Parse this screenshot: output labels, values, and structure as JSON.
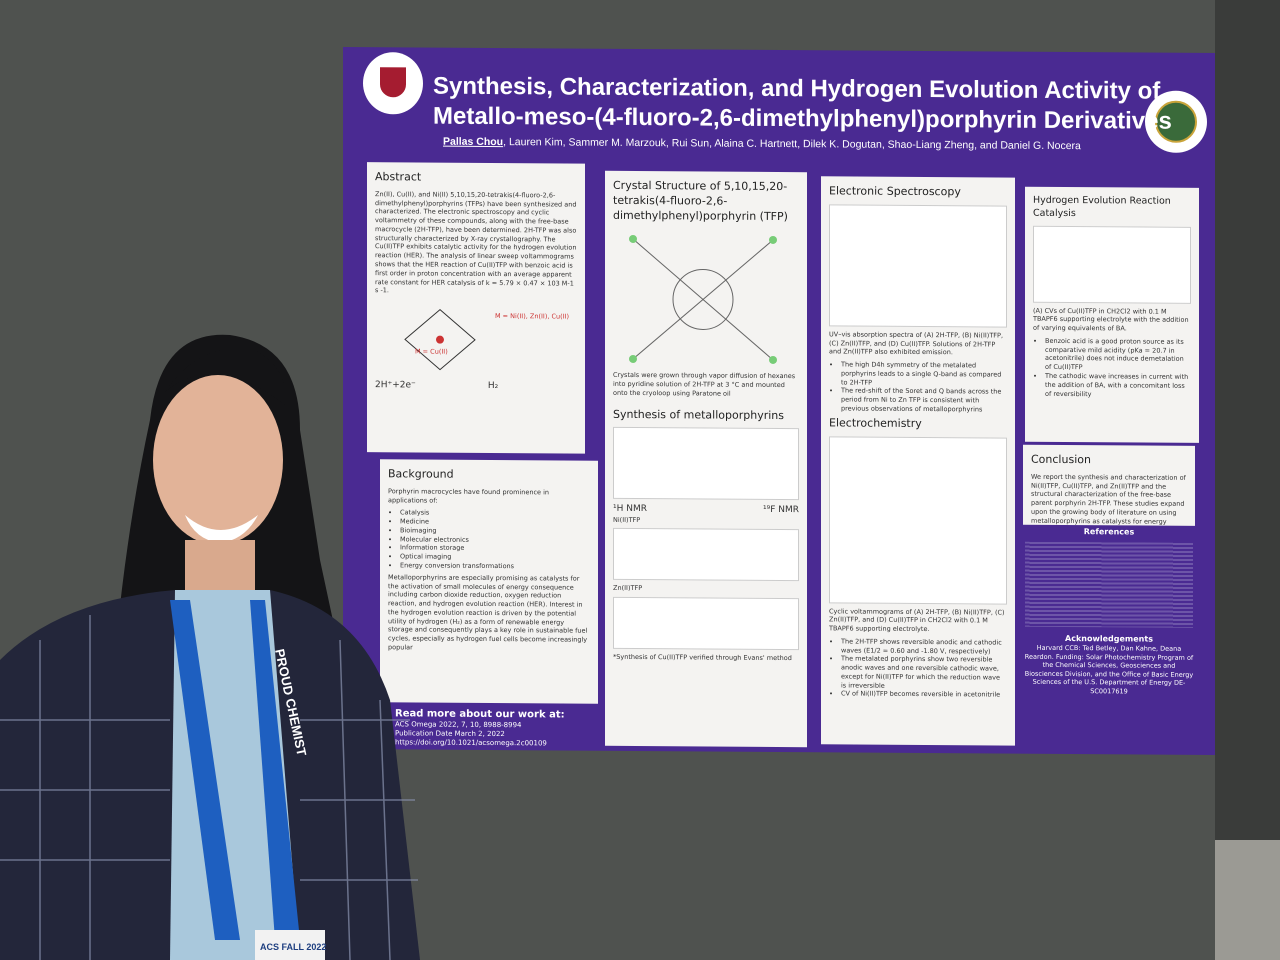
{
  "poster": {
    "title_line1": "Synthesis, Characterization, and Hydrogen Evolution Activity of",
    "title_line2": "Metallo-meso-(4-fluoro-2,6-dimethylphenyl)porphyrin Derivatives",
    "presenter": "Pallas Chou",
    "authors": ", Lauren Kim, Sammer M. Marzouk, Rui Sun, Alaina C. Hartnett, Dilek K. Dogutan, Shao-Liang Zheng, and Daniel G. Nocera",
    "abstract": {
      "heading": "Abstract",
      "text": "Zn(II), Cu(II), and Ni(II) 5,10,15,20-tetrakis(4-fluoro-2,6-dimethylphenyl)porphyrins (TFPs) have been synthesized and characterized. The electronic spectroscopy and cyclic voltammetry of these compounds, along with the free-base macrocycle (2H-TFP), have been determined. 2H-TFP was also structurally characterized by X-ray crystallography. The Cu(II)TFP exhibits catalytic activity for the hydrogen evolution reaction (HER). The analysis of linear sweep voltammograms shows that the HER reaction of Cu(II)TFP with benzoic acid is first order in proton concentration with an average apparent rate constant for HER catalysis of k = 5.79 × 0.47 × 103 M-1 s -1.",
      "metals": "M = Ni(II), Zn(II), Cu(II)",
      "cu": "M = Cu(II)",
      "reaction": "2H⁺+2e⁻",
      "product": "H₂"
    },
    "background": {
      "heading": "Background",
      "intro": "Porphyrin macrocycles have found prominence in applications of:",
      "items": [
        "Catalysis",
        "Medicine",
        "Bioimaging",
        "Molecular electronics",
        "Information storage",
        "Optical imaging",
        "Energy conversion transformations"
      ],
      "paragraph": "Metalloporphyrins are especially promising as catalysts for the activation of small molecules of energy consequence including carbon dioxide reduction, oxygen reduction reaction, and hydrogen evolution reaction (HER). Interest in the hydrogen evolution reaction is driven by the potential utility of hydrogen (H₂) as a form of renewable energy storage and consequently plays a key role in sustainable fuel cycles, especially as hydrogen fuel cells become increasingly popular"
    },
    "crystal": {
      "heading": "Crystal Structure of 5,10,15,20-tetrakis(4-fluoro-2,6-dimethylphenyl)porphyrin (TFP)",
      "caption": "Crystals were grown through vapor diffusion of hexanes into pyridine solution of 2H-TFP at 3 °C and mounted onto the cryoloop using Paratone oil"
    },
    "synthesis": {
      "heading": "Synthesis of metalloporphyrins",
      "h_nmr": "¹H NMR",
      "f_nmr": "¹⁹F NMR",
      "ni": "Ni(II)TFP",
      "zn": "Zn(II)TFP",
      "footnote": "*Synthesis of Cu(II)TFP verified through Evans' method"
    },
    "read_more": {
      "heading": "Read more about our work at:",
      "journal": "ACS Omega 2022, 7, 10, 8988-8994",
      "date": "Publication Date March 2, 2022",
      "doi": "https://doi.org/10.1021/acsomega.2c00109"
    },
    "electronic": {
      "heading": "Electronic Spectroscopy",
      "caption": "UV–vis absorption spectra of (A) 2H-TFP, (B) Ni(II)TFP, (C) Zn(II)TFP, and (D) Cu(II)TFP. Solutions of 2H-TFP and Zn(II)TFP also exhibited emission.",
      "bullets": [
        "The high D4h symmetry of the metalated porphyrins leads to a single Q-band as compared to 2H-TFP",
        "The red-shift of the Soret and Q bands across the period from Ni to Zn TFP is consistent with previous observations of metalloporphyrins"
      ]
    },
    "electrochemistry": {
      "heading": "Electrochemistry",
      "caption": "Cyclic voltammograms of (A) 2H-TFP, (B) Ni(II)TFP, (C) Zn(II)TFP, and (D) Cu(II)TFP in CH2Cl2 with 0.1 M TBAPF6 supporting electrolyte.",
      "bullets": [
        "The 2H-TFP shows reversible anodic and cathodic waves (E1/2 = 0.60 and -1.80 V, respectively)",
        "The metalated porphyrins show two reversible anodic waves and one reversible cathodic wave, except for Ni(II)TFP for which the reduction wave is irreversible",
        "CV of Ni(II)TFP becomes reversible in acetonitrile"
      ]
    },
    "her": {
      "heading": "Hydrogen Evolution Reaction Catalysis",
      "caption": "(A) CVs of Cu(II)TFP in CH2Cl2 with 0.1 M TBAPF6 supporting electrolyte with the addition of varying equivalents of BA.",
      "bullets": [
        "Benzoic acid is a good proton source as its comparative mild acidity (pKa = 20.7 in acetonitrile) does not induce demetalation of Cu(II)TFP",
        "The cathodic wave increases in current with the addition of BA, with a concomitant loss of reversibility"
      ]
    },
    "conclusion": {
      "heading": "Conclusion",
      "text": "We report the synthesis and characterization of Ni(II)TFP, Cu(II)TFP, and Zn(II)TFP and the structural characterization of the free-base parent porphyrin 2H-TFP. These studies expand upon the growing body of literature on using metalloporphyrins as catalysts for energy conversion transformations."
    },
    "references": {
      "heading": "References"
    },
    "acknowledgements": {
      "heading": "Acknowledgements",
      "text": "Harvard CCB: Ted Betley, Dan Kahne, Deana Reardon. Funding: Solar Photochemistry Program of the Chemical Sciences, Geosciences and Biosciences Division, and the Office of Basic Energy Sciences of the U.S. Department of Energy DE-SC0017619"
    }
  },
  "lanyard": {
    "text": "PROUD CHEMIST",
    "badge": "ACS FALL 2022"
  }
}
